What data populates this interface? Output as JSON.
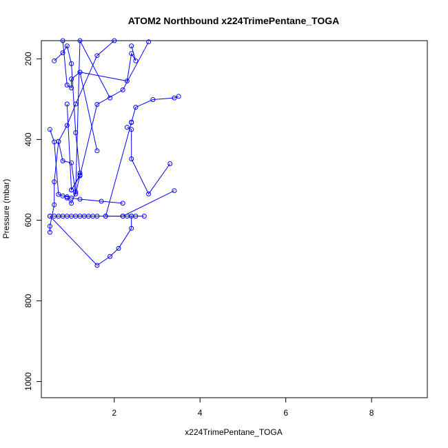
{
  "chart_data": {
    "type": "line",
    "title": "ATOM2 Northbound x224TrimePentane_TOGA",
    "xlabel": "x224TrimePentane_TOGA",
    "ylabel": "Pressure (mbar)",
    "xlim": [
      0.3,
      9.3
    ],
    "ylim": [
      1040,
      155
    ],
    "y_reversed": true,
    "x_ticks": [
      2,
      4,
      6,
      8
    ],
    "x_tick_labels": [
      "2",
      "4",
      "6",
      "8"
    ],
    "y_ticks": [
      200,
      400,
      600,
      800,
      1000
    ],
    "y_tick_labels": [
      "200",
      "400",
      "600",
      "800",
      "1000"
    ],
    "grid": false,
    "legend": "none",
    "color": "#0000ff",
    "marker": "open-circle",
    "series": [
      {
        "x": [
          0.5,
          0.6,
          0.7,
          0.8,
          0.9,
          1.0,
          1.1,
          1.2,
          1.3,
          1.4,
          1.5,
          1.6,
          1.8,
          2.2,
          2.3,
          2.4,
          2.5,
          2.7
        ],
        "y": [
          590,
          590,
          590,
          590,
          590,
          590,
          590,
          590,
          590,
          590,
          590,
          590,
          590,
          590,
          590,
          590,
          590,
          590
        ]
      },
      {
        "x": [
          0.5,
          0.5,
          0.6,
          0.6,
          0.7,
          0.9,
          1.1,
          1.6,
          2.0
        ],
        "y": [
          630,
          615,
          562,
          505,
          405,
          365,
          312,
          192,
          155
        ]
      },
      {
        "x": [
          0.5,
          0.6,
          0.7,
          0.8,
          0.9,
          1.0,
          1.2,
          1.7,
          2.2
        ],
        "y": [
          375,
          406,
          536,
          540,
          542,
          545,
          548,
          553,
          558
        ]
      },
      {
        "x": [
          0.6,
          0.8,
          0.9,
          1.0,
          1.1,
          1.2
        ],
        "y": [
          205,
          185,
          168,
          212,
          383,
          483
        ]
      },
      {
        "x": [
          0.8,
          0.9,
          1.0,
          1.0,
          1.2,
          1.6
        ],
        "y": [
          155,
          265,
          272,
          250,
          233,
          428
        ]
      },
      {
        "x": [
          0.7,
          0.8,
          1.0,
          1.1,
          1.2,
          1.0
        ],
        "y": [
          405,
          453,
          458,
          535,
          488,
          525
        ]
      },
      {
        "x": [
          0.9,
          1.0,
          1.2,
          1.6,
          2.2,
          2.8
        ],
        "y": [
          312,
          525,
          490,
          313,
          277,
          158
        ]
      },
      {
        "x": [
          0.9,
          1.0,
          1.1,
          1.2,
          1.9
        ],
        "y": [
          545,
          558,
          530,
          155,
          297
        ]
      },
      {
        "x": [
          1.2,
          2.3,
          2.4,
          2.5,
          2.4
        ],
        "y": [
          233,
          255,
          187,
          205,
          168
        ]
      },
      {
        "x": [
          2.4,
          2.5,
          2.9,
          3.4,
          3.5
        ],
        "y": [
          357,
          320,
          301,
          297,
          293
        ]
      },
      {
        "x": [
          2.3,
          2.4,
          2.4,
          2.8,
          3.3
        ],
        "y": [
          370,
          375,
          448,
          535,
          460
        ]
      },
      {
        "x": [
          2.4,
          1.8,
          2.2,
          3.4
        ],
        "y": [
          358,
          590,
          590,
          527
        ]
      },
      {
        "x": [
          0.5,
          1.6,
          1.9,
          2.1,
          2.4,
          2.4
        ],
        "y": [
          590,
          712,
          690,
          670,
          620,
          590
        ]
      }
    ]
  }
}
